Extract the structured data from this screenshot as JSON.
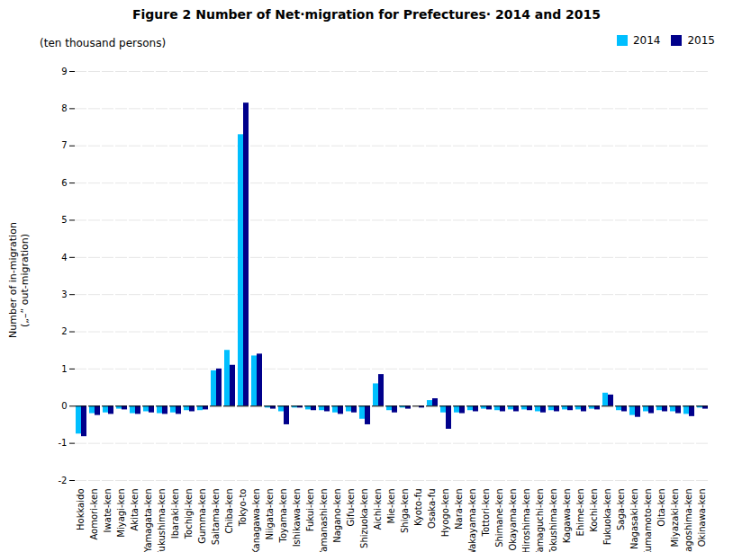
{
  "chart_data": {
    "type": "bar",
    "title": "Figure 2   Number of Net·migration for Prefectures· 2014 and 2015",
    "ylabel": "Number of  in-migration\n(„–“ out‐migration)",
    "annotations": [
      "(ten thousand persons)"
    ],
    "categories": [
      "Hokkaido",
      "Aomori-ken",
      "Iwate-ken",
      "Miyagi-ken",
      "Akita-ken",
      "Yamagata-ken",
      "Fukushima-ken",
      "Ibaraki-ken",
      "Tochigi-ken",
      "Gumma-ken",
      "Saitama-ken",
      "Chiba-ken",
      "Tokyo-to",
      "Kanagawa-ken",
      "Niigata-ken",
      "Toyama-ken",
      "Ishikawa-ken",
      "Fukui-ken",
      "Yamanashi-ken",
      "Nagano-ken",
      "Gifu-ken",
      "Shizuoka-ken",
      "Aichi-ken",
      "Mie-ken",
      "Shiga-ken",
      "Kyoto-fu",
      "Osaka-fu",
      "Hyogo-ken",
      "Nara-ken",
      "Wakayama-ken",
      "Tottori-ken",
      "Shimane-ken",
      "Okayama-ken",
      "Hiroshima-ken",
      "Yamaguchi-ken",
      "Tokushima-ken",
      "Kagawa-ken",
      "Ehime-ken",
      "Kochi-ken",
      "Fukuoka-ken",
      "Saga-ken",
      "Nagasaki-ken",
      "Kumamoto-ken",
      "Oita-ken",
      "Miyazaki-ken",
      "Kagoshima-ken",
      "Okinawa-ken"
    ],
    "series": [
      {
        "name": "2014",
        "color": "#00BFFF",
        "values": [
          -0.75,
          -0.2,
          -0.18,
          -0.08,
          -0.2,
          -0.15,
          -0.2,
          -0.18,
          -0.12,
          -0.12,
          0.95,
          1.5,
          7.3,
          1.35,
          -0.05,
          -0.15,
          -0.05,
          -0.1,
          -0.12,
          -0.18,
          -0.15,
          -0.35,
          0.6,
          -0.12,
          -0.05,
          0.0,
          0.15,
          -0.18,
          -0.18,
          -0.12,
          -0.08,
          -0.12,
          -0.1,
          -0.1,
          -0.15,
          -0.12,
          -0.1,
          -0.1,
          -0.08,
          0.35,
          -0.12,
          -0.25,
          -0.15,
          -0.12,
          -0.15,
          -0.22,
          -0.05
        ]
      },
      {
        "name": "2015",
        "color": "#00008B",
        "values": [
          -0.82,
          -0.25,
          -0.22,
          -0.1,
          -0.22,
          -0.18,
          -0.22,
          -0.22,
          -0.15,
          -0.1,
          1.0,
          1.1,
          8.15,
          1.4,
          -0.08,
          -0.5,
          -0.05,
          -0.12,
          -0.15,
          -0.22,
          -0.18,
          -0.5,
          0.85,
          -0.18,
          -0.08,
          -0.05,
          0.2,
          -0.62,
          -0.2,
          -0.15,
          -0.1,
          -0.15,
          -0.15,
          -0.12,
          -0.18,
          -0.15,
          -0.12,
          -0.15,
          -0.1,
          0.3,
          -0.15,
          -0.3,
          -0.2,
          -0.15,
          -0.2,
          -0.28,
          -0.08
        ]
      }
    ],
    "ylim": [
      -2,
      9
    ],
    "yticks": [
      -2,
      -1,
      0,
      1,
      2,
      3,
      4,
      5,
      6,
      7,
      8,
      9
    ],
    "grid": true,
    "legend": "upper right"
  }
}
